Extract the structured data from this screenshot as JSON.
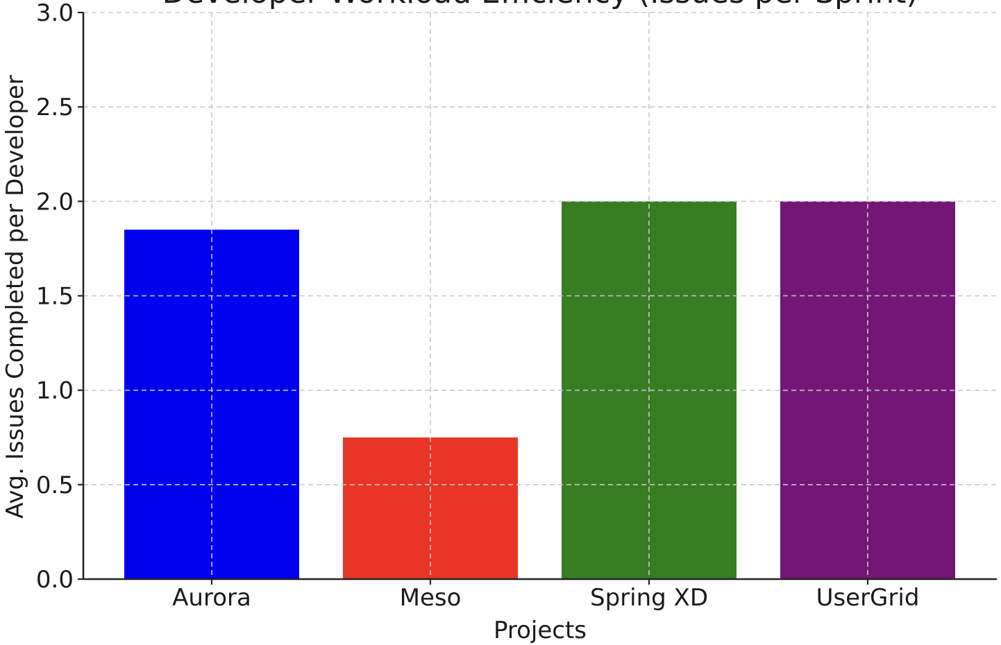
{
  "chart_data": {
    "type": "bar",
    "title": "Developer Workload Efficiency (Issues per Sprint)",
    "xlabel": "Projects",
    "ylabel": "Avg. Issues Completed per Developer",
    "categories": [
      "Aurora",
      "Meso",
      "Spring XD",
      "UserGrid"
    ],
    "values": [
      1.85,
      0.75,
      2.0,
      2.0
    ],
    "colors": [
      "#0000ee",
      "#e83526",
      "#377d22",
      "#741675"
    ],
    "ylim": [
      0,
      3.0
    ],
    "yticks": [
      "0.0",
      "0.5",
      "1.0",
      "1.5",
      "2.0",
      "2.5",
      "3.0"
    ],
    "grid": true,
    "legend": "none"
  }
}
